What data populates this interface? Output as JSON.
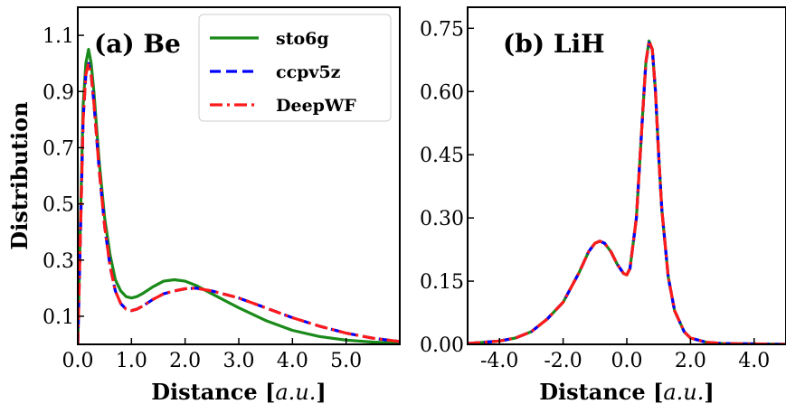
{
  "colors": {
    "sto6g": "#1a8a1a",
    "ccpv5z": "#0000ff",
    "DeepWF": "#ff1a1a"
  },
  "chart_data": [
    {
      "type": "line",
      "title": "(a) Be",
      "xlabel": "Distance",
      "xunit": "a.u.",
      "ylabel": "Distribution",
      "xlim": [
        0,
        6.0
      ],
      "ylim": [
        0,
        1.2
      ],
      "xticks": [
        0.0,
        1.0,
        2.0,
        3.0,
        4.0,
        5.0
      ],
      "xtick_labels": [
        "0.0",
        "1.0",
        "2.0",
        "3.0",
        "4.0",
        "5.0"
      ],
      "yticks": [
        0.1,
        0.3,
        0.5,
        0.7,
        0.9,
        1.1
      ],
      "ytick_labels": [
        "0.1",
        "0.3",
        "0.5",
        "0.7",
        "0.9",
        "1.1"
      ],
      "legend": {
        "position": "upper-center",
        "entries": [
          "sto6g",
          "ccpv5z",
          "DeepWF"
        ]
      },
      "series": [
        {
          "name": "sto6g",
          "style": "solid",
          "x": [
            0.0,
            0.05,
            0.1,
            0.15,
            0.2,
            0.25,
            0.3,
            0.4,
            0.5,
            0.6,
            0.7,
            0.8,
            0.9,
            1.0,
            1.1,
            1.2,
            1.4,
            1.6,
            1.8,
            2.0,
            2.2,
            2.5,
            3.0,
            3.5,
            4.0,
            4.5,
            5.0,
            5.5,
            6.0
          ],
          "y": [
            0.0,
            0.45,
            0.85,
            1.0,
            1.05,
            1.0,
            0.9,
            0.65,
            0.45,
            0.32,
            0.23,
            0.19,
            0.17,
            0.165,
            0.17,
            0.18,
            0.205,
            0.225,
            0.23,
            0.225,
            0.21,
            0.18,
            0.13,
            0.085,
            0.05,
            0.028,
            0.015,
            0.008,
            0.004
          ]
        },
        {
          "name": "ccpv5z",
          "style": "dashed",
          "x": [
            0.0,
            0.05,
            0.1,
            0.15,
            0.2,
            0.25,
            0.3,
            0.4,
            0.5,
            0.6,
            0.7,
            0.8,
            0.9,
            1.0,
            1.1,
            1.2,
            1.4,
            1.6,
            1.8,
            2.0,
            2.2,
            2.5,
            3.0,
            3.5,
            4.0,
            4.5,
            5.0,
            5.5,
            6.0
          ],
          "y": [
            0.0,
            0.4,
            0.8,
            0.96,
            1.0,
            0.96,
            0.86,
            0.62,
            0.42,
            0.28,
            0.19,
            0.145,
            0.125,
            0.12,
            0.125,
            0.135,
            0.16,
            0.18,
            0.19,
            0.198,
            0.2,
            0.19,
            0.165,
            0.13,
            0.095,
            0.065,
            0.04,
            0.022,
            0.01
          ]
        },
        {
          "name": "DeepWF",
          "style": "dashdot",
          "x": [
            0.0,
            0.05,
            0.1,
            0.15,
            0.2,
            0.25,
            0.3,
            0.4,
            0.5,
            0.6,
            0.7,
            0.8,
            0.9,
            1.0,
            1.1,
            1.2,
            1.4,
            1.6,
            1.8,
            2.0,
            2.2,
            2.5,
            3.0,
            3.5,
            4.0,
            4.5,
            5.0,
            5.5,
            6.0
          ],
          "y": [
            0.0,
            0.4,
            0.8,
            0.96,
            1.0,
            0.96,
            0.86,
            0.62,
            0.42,
            0.28,
            0.19,
            0.145,
            0.125,
            0.12,
            0.125,
            0.135,
            0.16,
            0.18,
            0.19,
            0.198,
            0.2,
            0.19,
            0.165,
            0.13,
            0.095,
            0.065,
            0.04,
            0.022,
            0.01
          ]
        }
      ]
    },
    {
      "type": "line",
      "title": "(b) LiH",
      "xlabel": "Distance",
      "xunit": "a.u.",
      "ylabel": "",
      "xlim": [
        -5.0,
        5.0
      ],
      "ylim": [
        0.0,
        0.8
      ],
      "xticks": [
        -4.0,
        -2.0,
        0.0,
        2.0,
        4.0
      ],
      "xtick_labels": [
        "-4.0",
        "-2.0",
        "0.0",
        "2.0",
        "4.0"
      ],
      "yticks": [
        0.0,
        0.15,
        0.3,
        0.45,
        0.6,
        0.75
      ],
      "ytick_labels": [
        "0.00",
        "0.15",
        "0.30",
        "0.45",
        "0.60",
        "0.75"
      ],
      "series": [
        {
          "name": "sto6g",
          "style": "solid",
          "x": [
            -5.0,
            -4.0,
            -3.5,
            -3.0,
            -2.5,
            -2.0,
            -1.5,
            -1.2,
            -1.0,
            -0.85,
            -0.7,
            -0.5,
            -0.3,
            -0.1,
            0.0,
            0.1,
            0.3,
            0.5,
            0.6,
            0.7,
            0.8,
            0.9,
            1.0,
            1.1,
            1.3,
            1.5,
            1.8,
            2.0,
            2.5,
            3.0,
            4.0,
            5.0
          ],
          "y": [
            0.002,
            0.008,
            0.015,
            0.03,
            0.06,
            0.1,
            0.17,
            0.22,
            0.24,
            0.245,
            0.24,
            0.22,
            0.19,
            0.168,
            0.165,
            0.18,
            0.3,
            0.55,
            0.67,
            0.72,
            0.7,
            0.6,
            0.45,
            0.32,
            0.16,
            0.08,
            0.03,
            0.015,
            0.005,
            0.002,
            0.001,
            0.0
          ]
        },
        {
          "name": "ccpv5z",
          "style": "dashed",
          "x": [
            -5.0,
            -4.0,
            -3.5,
            -3.0,
            -2.5,
            -2.0,
            -1.5,
            -1.2,
            -1.0,
            -0.85,
            -0.7,
            -0.5,
            -0.3,
            -0.1,
            0.0,
            0.1,
            0.3,
            0.5,
            0.6,
            0.7,
            0.8,
            0.9,
            1.0,
            1.1,
            1.3,
            1.5,
            1.8,
            2.0,
            2.5,
            3.0,
            4.0,
            5.0
          ],
          "y": [
            0.002,
            0.008,
            0.015,
            0.03,
            0.06,
            0.1,
            0.17,
            0.22,
            0.24,
            0.245,
            0.24,
            0.22,
            0.19,
            0.168,
            0.165,
            0.18,
            0.3,
            0.55,
            0.67,
            0.715,
            0.7,
            0.6,
            0.45,
            0.32,
            0.16,
            0.08,
            0.03,
            0.015,
            0.005,
            0.002,
            0.001,
            0.0
          ]
        },
        {
          "name": "DeepWF",
          "style": "dashdot",
          "x": [
            -5.0,
            -4.0,
            -3.5,
            -3.0,
            -2.5,
            -2.0,
            -1.5,
            -1.2,
            -1.0,
            -0.85,
            -0.7,
            -0.5,
            -0.3,
            -0.1,
            0.0,
            0.1,
            0.3,
            0.5,
            0.6,
            0.7,
            0.8,
            0.9,
            1.0,
            1.1,
            1.3,
            1.5,
            1.8,
            2.0,
            2.5,
            3.0,
            4.0,
            5.0
          ],
          "y": [
            0.002,
            0.008,
            0.015,
            0.03,
            0.06,
            0.1,
            0.17,
            0.22,
            0.24,
            0.245,
            0.24,
            0.22,
            0.19,
            0.168,
            0.165,
            0.18,
            0.3,
            0.55,
            0.67,
            0.72,
            0.7,
            0.6,
            0.45,
            0.32,
            0.16,
            0.08,
            0.03,
            0.015,
            0.005,
            0.002,
            0.001,
            0.0
          ]
        }
      ]
    }
  ]
}
